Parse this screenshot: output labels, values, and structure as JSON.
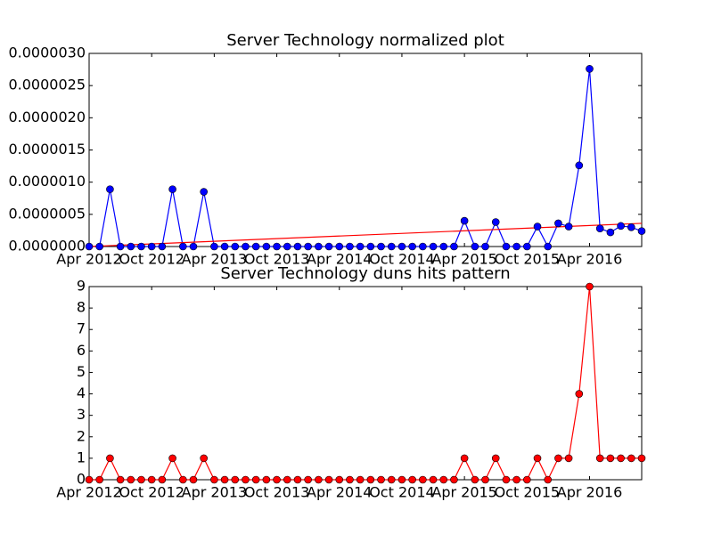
{
  "chart_data": [
    {
      "type": "line",
      "title": "Server Technology normalized plot",
      "x": [
        "2012-04",
        "2012-05",
        "2012-06",
        "2012-07",
        "2012-08",
        "2012-09",
        "2012-10",
        "2012-11",
        "2012-12",
        "2013-01",
        "2013-02",
        "2013-03",
        "2013-04",
        "2013-05",
        "2013-06",
        "2013-07",
        "2013-08",
        "2013-09",
        "2013-10",
        "2013-11",
        "2013-12",
        "2014-01",
        "2014-02",
        "2014-03",
        "2014-04",
        "2014-05",
        "2014-06",
        "2014-07",
        "2014-08",
        "2014-09",
        "2014-10",
        "2014-11",
        "2014-12",
        "2015-01",
        "2015-02",
        "2015-03",
        "2015-04",
        "2015-05",
        "2015-06",
        "2015-07",
        "2015-08",
        "2015-09",
        "2015-10",
        "2015-11",
        "2015-12",
        "2016-01",
        "2016-02",
        "2016-03",
        "2016-04",
        "2016-05",
        "2016-06",
        "2016-07",
        "2016-08",
        "2016-09"
      ],
      "series": [
        {
          "color": "#0000ff",
          "marker_color": "#0000ff",
          "values": [
            0,
            0,
            8.9e-07,
            0,
            0,
            0,
            0,
            0,
            8.9e-07,
            0,
            0,
            8.5e-07,
            0,
            0,
            0,
            0,
            0,
            0,
            0,
            0,
            0,
            0,
            0,
            0,
            0,
            0,
            0,
            0,
            0,
            0,
            0,
            0,
            0,
            0,
            0,
            0,
            4e-07,
            0,
            0,
            3.8e-07,
            0,
            0,
            0,
            3.1e-07,
            0,
            3.6e-07,
            3.1e-07,
            1.26e-06,
            2.76e-06,
            2.8e-07,
            2.2e-07,
            3.2e-07,
            3e-07,
            2.4e-07
          ]
        }
      ],
      "trend": {
        "color": "#ff0000",
        "x": [
          "2012-04",
          "2016-09"
        ],
        "values": [
          0,
          3.6e-07
        ]
      },
      "xticks": [
        {
          "value": "2012-04",
          "label": "Apr 2012"
        },
        {
          "value": "2012-10",
          "label": "Oct 2012"
        },
        {
          "value": "2013-04",
          "label": "Apr 2013"
        },
        {
          "value": "2013-10",
          "label": "Oct 2013"
        },
        {
          "value": "2014-04",
          "label": "Apr 2014"
        },
        {
          "value": "2014-10",
          "label": "Oct 2014"
        },
        {
          "value": "2015-04",
          "label": "Apr 2015"
        },
        {
          "value": "2015-10",
          "label": "Oct 2015"
        },
        {
          "value": "2016-04",
          "label": "Apr 2016"
        }
      ],
      "ylim": [
        0,
        3e-06
      ],
      "yticks": [
        {
          "value": 0,
          "label": "0.0000000"
        },
        {
          "value": 5e-07,
          "label": "0.0000005"
        },
        {
          "value": 1e-06,
          "label": "0.0000010"
        },
        {
          "value": 1.5e-06,
          "label": "0.0000015"
        },
        {
          "value": 2e-06,
          "label": "0.0000020"
        },
        {
          "value": 2.5e-06,
          "label": "0.0000025"
        },
        {
          "value": 3e-06,
          "label": "0.0000030"
        }
      ]
    },
    {
      "type": "line",
      "title": "Server Technology duns hits pattern",
      "x": [
        "2012-04",
        "2012-05",
        "2012-06",
        "2012-07",
        "2012-08",
        "2012-09",
        "2012-10",
        "2012-11",
        "2012-12",
        "2013-01",
        "2013-02",
        "2013-03",
        "2013-04",
        "2013-05",
        "2013-06",
        "2013-07",
        "2013-08",
        "2013-09",
        "2013-10",
        "2013-11",
        "2013-12",
        "2014-01",
        "2014-02",
        "2014-03",
        "2014-04",
        "2014-05",
        "2014-06",
        "2014-07",
        "2014-08",
        "2014-09",
        "2014-10",
        "2014-11",
        "2014-12",
        "2015-01",
        "2015-02",
        "2015-03",
        "2015-04",
        "2015-05",
        "2015-06",
        "2015-07",
        "2015-08",
        "2015-09",
        "2015-10",
        "2015-11",
        "2015-12",
        "2016-01",
        "2016-02",
        "2016-03",
        "2016-04",
        "2016-05",
        "2016-06",
        "2016-07",
        "2016-08",
        "2016-09"
      ],
      "series": [
        {
          "color": "#ff0000",
          "marker_color": "#ff0000",
          "values": [
            0,
            0,
            1,
            0,
            0,
            0,
            0,
            0,
            1,
            0,
            0,
            1,
            0,
            0,
            0,
            0,
            0,
            0,
            0,
            0,
            0,
            0,
            0,
            0,
            0,
            0,
            0,
            0,
            0,
            0,
            0,
            0,
            0,
            0,
            0,
            0,
            1,
            0,
            0,
            1,
            0,
            0,
            0,
            1,
            0,
            1,
            1,
            4,
            9,
            1,
            1,
            1,
            1,
            1
          ]
        }
      ],
      "xticks": [
        {
          "value": "2012-04",
          "label": "Apr 2012"
        },
        {
          "value": "2012-10",
          "label": "Oct 2012"
        },
        {
          "value": "2013-04",
          "label": "Apr 2013"
        },
        {
          "value": "2013-10",
          "label": "Oct 2013"
        },
        {
          "value": "2014-04",
          "label": "Apr 2014"
        },
        {
          "value": "2014-10",
          "label": "Oct 2014"
        },
        {
          "value": "2015-04",
          "label": "Apr 2015"
        },
        {
          "value": "2015-10",
          "label": "Oct 2015"
        },
        {
          "value": "2016-04",
          "label": "Apr 2016"
        }
      ],
      "ylim": [
        0,
        9
      ],
      "yticks": [
        0,
        1,
        2,
        3,
        4,
        5,
        6,
        7,
        8,
        9
      ]
    }
  ]
}
